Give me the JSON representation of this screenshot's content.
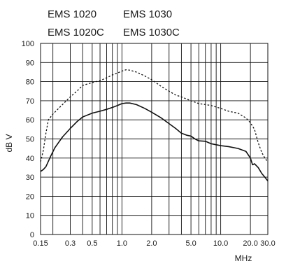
{
  "chart_data": {
    "type": "line",
    "legend": {
      "solid": [
        "EMS 1020",
        "EMS 1020C"
      ],
      "dashed": [
        "EMS 1030",
        "EMS 1030C"
      ]
    },
    "xlabel": "MHz",
    "ylabel": "dB  V",
    "x_scale": "log",
    "xlim": [
      0.15,
      30.0
    ],
    "ylim": [
      0,
      100
    ],
    "grid": true,
    "x_ticks": [
      0.15,
      0.3,
      0.5,
      1.0,
      2.0,
      5.0,
      10.0,
      20.0,
      30.0
    ],
    "x_tick_labels": [
      "0.15",
      "0.3",
      "0.5",
      "1.0",
      "2.0",
      "5.0",
      "10.0",
      "20.0",
      "30.0"
    ],
    "y_ticks": [
      0,
      10,
      20,
      30,
      40,
      50,
      60,
      70,
      80,
      90,
      100
    ],
    "y_tick_labels": [
      "0",
      "10",
      "20",
      "30",
      "40",
      "50",
      "60",
      "70",
      "80",
      "90",
      "100"
    ],
    "series": [
      {
        "name": "EMS 1020 / EMS 1020C",
        "style": "solid",
        "color": "#111111",
        "points": [
          [
            0.15,
            33
          ],
          [
            0.16,
            34
          ],
          [
            0.17,
            35.5
          ],
          [
            0.19,
            41
          ],
          [
            0.21,
            45.5
          ],
          [
            0.25,
            51
          ],
          [
            0.3,
            55.5
          ],
          [
            0.35,
            59
          ],
          [
            0.4,
            61.5
          ],
          [
            0.5,
            63.5
          ],
          [
            0.6,
            64.5
          ],
          [
            0.7,
            65.5
          ],
          [
            0.8,
            66.5
          ],
          [
            0.9,
            67.5
          ],
          [
            1.0,
            68.5
          ],
          [
            1.1,
            68.8
          ],
          [
            1.2,
            68.8
          ],
          [
            1.4,
            68
          ],
          [
            1.7,
            66
          ],
          [
            2.0,
            64
          ],
          [
            2.5,
            61
          ],
          [
            3.0,
            58
          ],
          [
            3.5,
            55.5
          ],
          [
            4.0,
            53
          ],
          [
            4.5,
            52
          ],
          [
            5.0,
            51.5
          ],
          [
            5.5,
            50
          ],
          [
            6.0,
            49
          ],
          [
            7.0,
            48.8
          ],
          [
            8.0,
            47.5
          ],
          [
            10.0,
            46.5
          ],
          [
            12.0,
            46
          ],
          [
            15.0,
            45
          ],
          [
            18.0,
            43.5
          ],
          [
            20.0,
            40
          ],
          [
            21.0,
            36.5
          ],
          [
            22.0,
            37
          ],
          [
            24.0,
            35
          ],
          [
            26.0,
            32
          ],
          [
            28.0,
            30
          ],
          [
            30.0,
            28
          ]
        ]
      },
      {
        "name": "EMS 1030 / EMS 1030C",
        "style": "dashed",
        "color": "#111111",
        "points": [
          [
            0.15,
            38
          ],
          [
            0.16,
            44
          ],
          [
            0.17,
            53
          ],
          [
            0.18,
            60
          ],
          [
            0.2,
            63
          ],
          [
            0.25,
            68
          ],
          [
            0.3,
            72
          ],
          [
            0.35,
            75
          ],
          [
            0.4,
            78
          ],
          [
            0.5,
            79.5
          ],
          [
            0.6,
            80.5
          ],
          [
            0.7,
            82
          ],
          [
            0.8,
            83.5
          ],
          [
            0.9,
            84.5
          ],
          [
            1.0,
            85.5
          ],
          [
            1.1,
            86.2
          ],
          [
            1.2,
            86
          ],
          [
            1.4,
            85
          ],
          [
            1.7,
            83
          ],
          [
            2.0,
            81
          ],
          [
            2.5,
            77.5
          ],
          [
            3.0,
            75
          ],
          [
            3.5,
            73
          ],
          [
            4.0,
            72
          ],
          [
            5.0,
            70
          ],
          [
            6.0,
            68.5
          ],
          [
            7.0,
            68
          ],
          [
            8.0,
            67.5
          ],
          [
            10.0,
            66
          ],
          [
            12.0,
            64.5
          ],
          [
            15.0,
            63.5
          ],
          [
            18.0,
            61
          ],
          [
            20.0,
            58.5
          ],
          [
            22.0,
            55
          ],
          [
            24.0,
            48
          ],
          [
            26.0,
            43
          ],
          [
            28.0,
            40
          ],
          [
            30.0,
            38
          ]
        ]
      }
    ]
  }
}
